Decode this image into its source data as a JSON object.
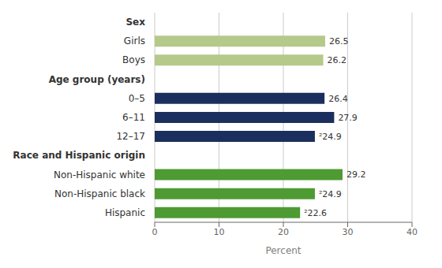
{
  "chart_data": {
    "type": "bar",
    "orientation": "horizontal",
    "categories": [
      "Sex",
      "Girls",
      "Boys",
      "Age group (years)",
      "0–5",
      "6–11",
      "12–17",
      "Race and Hispanic origin",
      "Non-Hispanic white",
      "Non-Hispanic black",
      "Hispanic"
    ],
    "values": [
      null,
      26.5,
      26.2,
      null,
      26.4,
      27.9,
      24.9,
      null,
      29.2,
      24.9,
      22.6
    ],
    "value_labels": [
      null,
      "26.5",
      "26.2",
      null,
      "26.4",
      "27.9",
      "²24.9",
      null,
      "29.2",
      "²24.9",
      "²22.6"
    ],
    "colors": [
      null,
      "#b5c98a",
      "#b5c98a",
      null,
      "#1b2f5e",
      "#1b2f5e",
      "#1b2f5e",
      null,
      "#4e9a33",
      "#4e9a33",
      "#4e9a33"
    ],
    "xlabel": "Percent",
    "xlim": [
      0,
      40
    ],
    "xticks": [
      0,
      10,
      20,
      30,
      40
    ],
    "grid": true,
    "data_labels": true
  }
}
